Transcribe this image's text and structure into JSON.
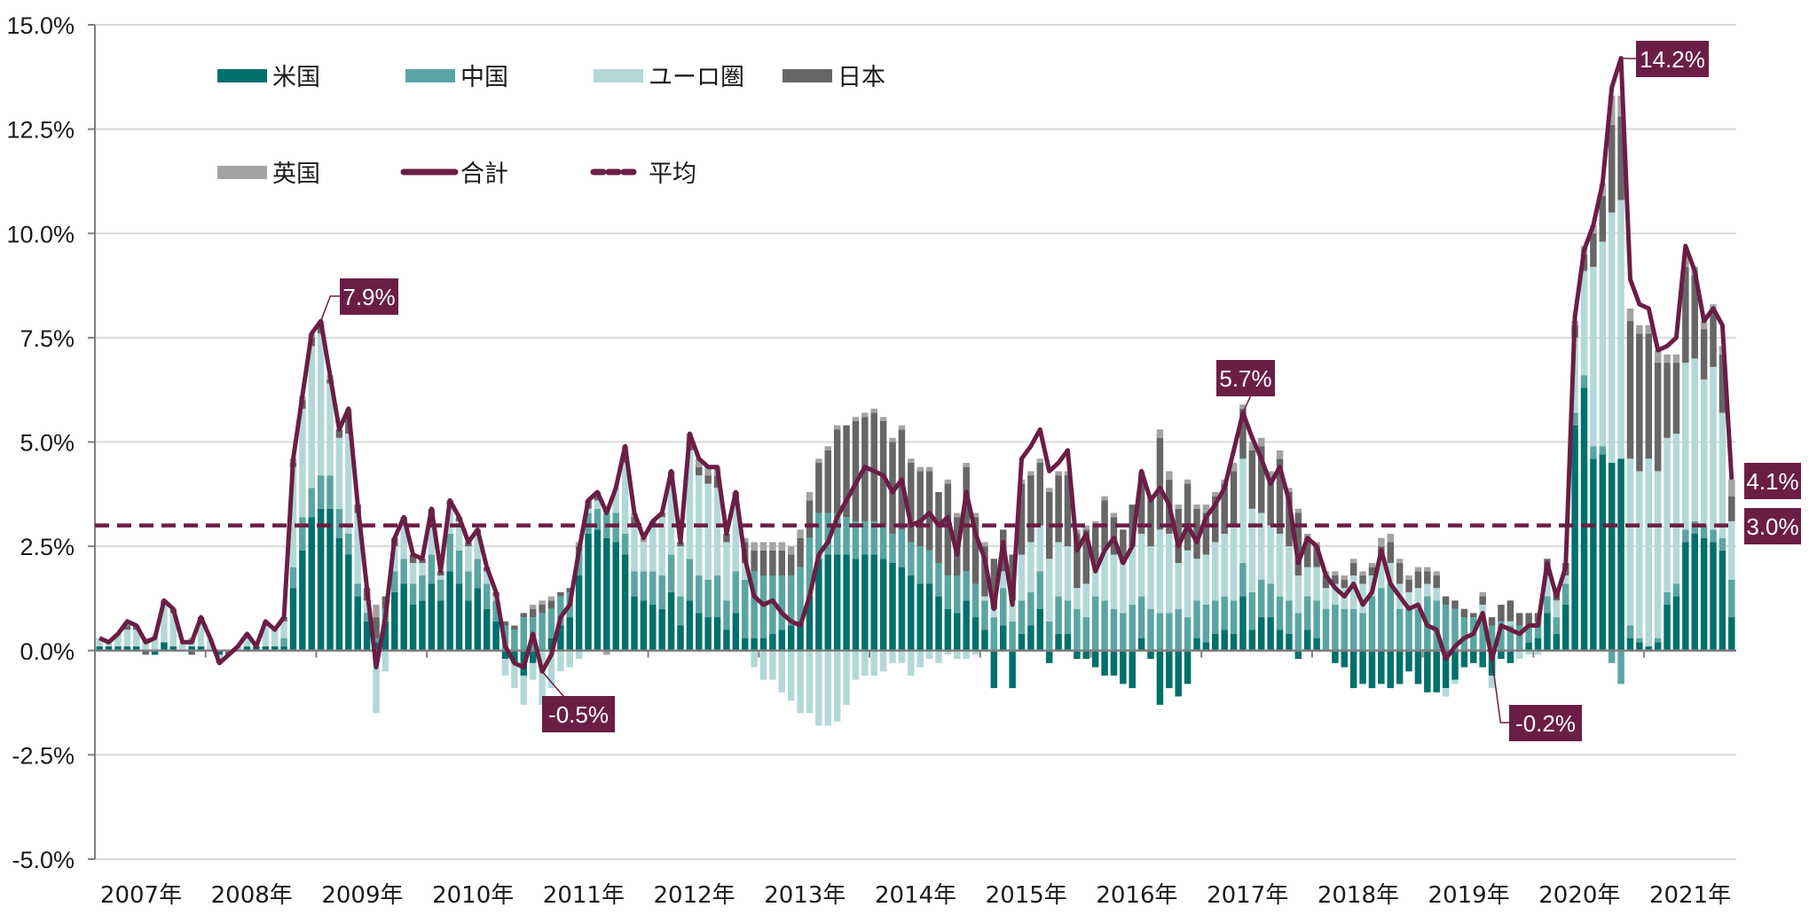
{
  "chart_data": {
    "type": "bar",
    "subtype": "stacked-bar-with-line",
    "title": "",
    "xlabel": "",
    "ylabel": "",
    "ylim": [
      -5.0,
      15.0
    ],
    "yticks": [
      "15.0%",
      "12.5%",
      "10.0%",
      "7.5%",
      "5.0%",
      "2.5%",
      "0.0%",
      "-2.5%",
      "-5.0%"
    ],
    "ytick_values": [
      15.0,
      12.5,
      10.0,
      7.5,
      5.0,
      2.5,
      0.0,
      -2.5,
      -5.0
    ],
    "xticks": [
      "2007年",
      "2008年",
      "2009年",
      "2010年",
      "2011年",
      "2012年",
      "2013年",
      "2014年",
      "2015年",
      "2016年",
      "2017年",
      "2018年",
      "2019年",
      "2020年",
      "2021年"
    ],
    "x_start": "2007-01",
    "x_frequency": "monthly",
    "n_points": 178,
    "grid": true,
    "legend_position": "top-left",
    "colors": {
      "us": "#00706b",
      "china": "#5aa5a3",
      "euro": "#b3d8d9",
      "japan": "#666666",
      "uk": "#a3a3a3",
      "total": "#6b1e45",
      "average": "#6b1e45",
      "annotation_bg": "#6b1e45"
    },
    "legend": [
      {
        "key": "us",
        "label": "米国",
        "kind": "bar"
      },
      {
        "key": "china",
        "label": "中国",
        "kind": "bar"
      },
      {
        "key": "euro",
        "label": "ユーロ圏",
        "kind": "bar"
      },
      {
        "key": "japan",
        "label": "日本",
        "kind": "bar"
      },
      {
        "key": "uk",
        "label": "英国",
        "kind": "bar"
      },
      {
        "key": "total",
        "label": "合計",
        "kind": "line"
      },
      {
        "key": "average",
        "label": "平均",
        "kind": "dashed-line"
      }
    ],
    "average_value": 3.0,
    "total": [
      0.3,
      0.2,
      0.4,
      0.7,
      0.6,
      0.2,
      0.3,
      1.2,
      1.0,
      0.2,
      0.2,
      0.8,
      0.3,
      -0.3,
      -0.1,
      0.1,
      0.4,
      0.1,
      0.7,
      0.5,
      0.8,
      4.6,
      6.1,
      7.6,
      7.9,
      6.6,
      5.3,
      5.8,
      3.5,
      1.5,
      -0.4,
      0.8,
      2.7,
      3.2,
      2.3,
      2.2,
      3.4,
      1.9,
      3.6,
      3.2,
      2.6,
      2.9,
      2.0,
      1.4,
      0.1,
      -0.3,
      -0.4,
      0.4,
      -0.5,
      -0.1,
      0.8,
      1.1,
      2.4,
      3.6,
      3.8,
      3.3,
      3.9,
      4.9,
      3.3,
      2.7,
      3.1,
      3.3,
      4.3,
      2.6,
      5.2,
      4.6,
      4.4,
      4.4,
      2.8,
      3.8,
      2.2,
      1.3,
      1.1,
      1.2,
      0.9,
      0.7,
      0.6,
      1.3,
      2.3,
      2.6,
      3.2,
      3.6,
      4.0,
      4.4,
      4.3,
      4.2,
      3.8,
      4.1,
      3.0,
      3.1,
      3.3,
      3.0,
      3.2,
      2.3,
      3.8,
      2.8,
      2.2,
      1.0,
      2.6,
      1.1,
      4.6,
      4.9,
      5.3,
      4.3,
      4.5,
      4.8,
      2.4,
      2.8,
      1.9,
      2.4,
      2.7,
      2.1,
      2.5,
      4.3,
      3.6,
      3.9,
      3.5,
      2.5,
      3.0,
      2.6,
      3.2,
      3.5,
      3.9,
      4.8,
      5.7,
      5.1,
      4.6,
      4.0,
      4.4,
      3.6,
      2.1,
      2.7,
      2.5,
      1.8,
      1.5,
      1.3,
      1.6,
      1.1,
      1.4,
      2.4,
      1.6,
      1.3,
      1.0,
      1.1,
      0.6,
      0.5,
      -0.2,
      0.1,
      0.3,
      0.4,
      0.9,
      -0.2,
      0.6,
      0.5,
      0.4,
      0.6,
      0.6,
      2.1,
      1.3,
      2.0,
      8.0,
      9.6,
      10.2,
      11.2,
      13.5,
      14.2,
      8.9,
      8.3,
      8.2,
      7.2,
      7.3,
      7.5,
      9.7,
      9.1,
      7.9,
      8.2,
      7.8,
      4.1
    ],
    "us": [
      0.1,
      0.1,
      0.1,
      0.1,
      0.1,
      0.0,
      -0.1,
      0.2,
      0.1,
      0.0,
      0.1,
      0.1,
      0.0,
      -0.1,
      0.0,
      0.0,
      0.1,
      0.1,
      0.1,
      0.1,
      0.1,
      1.5,
      2.4,
      3.2,
      3.4,
      3.4,
      2.7,
      2.3,
      1.3,
      0.7,
      0.2,
      0.7,
      1.4,
      1.6,
      1.1,
      1.2,
      1.6,
      1.2,
      1.9,
      1.6,
      1.2,
      1.5,
      1.0,
      0.7,
      -0.2,
      -0.3,
      -0.6,
      -0.3,
      0.0,
      0.3,
      0.6,
      0.8,
      1.8,
      2.8,
      2.9,
      2.7,
      2.6,
      2.3,
      1.3,
      1.2,
      1.1,
      1.0,
      1.4,
      0.6,
      1.2,
      0.9,
      0.8,
      0.8,
      0.5,
      0.9,
      0.3,
      0.3,
      0.3,
      0.4,
      0.5,
      0.6,
      0.7,
      1.3,
      2.2,
      2.3,
      2.3,
      2.3,
      2.2,
      2.3,
      2.3,
      2.2,
      2.1,
      2.0,
      1.8,
      1.6,
      1.6,
      1.3,
      1.0,
      0.9,
      1.2,
      0.8,
      0.5,
      -0.9,
      0.6,
      -0.9,
      0.4,
      0.6,
      1.0,
      -0.3,
      0.4,
      0.4,
      -0.2,
      -0.2,
      -0.4,
      -0.6,
      -0.6,
      -0.8,
      -0.9,
      0.3,
      -0.2,
      -1.3,
      -0.9,
      -1.1,
      -0.8,
      0.3,
      0.2,
      0.4,
      0.5,
      0.4,
      1.3,
      0.5,
      0.8,
      0.8,
      0.5,
      0.4,
      -0.2,
      0.5,
      0.3,
      0.0,
      -0.3,
      -0.4,
      -0.9,
      -0.8,
      -0.9,
      -0.8,
      -0.9,
      -0.8,
      -0.5,
      -0.8,
      -1.0,
      -1.0,
      -0.9,
      -0.7,
      -0.4,
      -0.3,
      -0.4,
      -0.6,
      -0.2,
      -0.3,
      0.0,
      0.2,
      0.3,
      0.9,
      0.4,
      1.1,
      5.4,
      6.3,
      4.6,
      4.7,
      4.5,
      4.6,
      0.3,
      0.2,
      0.1,
      0.2,
      1.1,
      1.3,
      2.6,
      2.8,
      2.7,
      2.6,
      2.4,
      0.8
    ],
    "china": [
      0.0,
      0.0,
      0.0,
      0.0,
      0.0,
      0.0,
      0.0,
      0.0,
      0.0,
      0.0,
      0.0,
      0.0,
      0.0,
      0.0,
      0.0,
      0.0,
      0.0,
      0.0,
      0.0,
      0.0,
      0.2,
      0.5,
      0.8,
      0.7,
      0.8,
      0.8,
      0.7,
      0.5,
      0.3,
      0.2,
      0.1,
      0.3,
      0.5,
      0.6,
      0.5,
      0.6,
      0.7,
      0.5,
      0.9,
      0.8,
      0.7,
      0.7,
      0.6,
      0.5,
      0.6,
      0.5,
      0.8,
      0.8,
      0.9,
      0.7,
      0.7,
      0.6,
      0.6,
      0.5,
      0.5,
      0.6,
      0.7,
      0.5,
      0.6,
      0.7,
      0.8,
      0.8,
      0.9,
      0.7,
      1.0,
      0.9,
      0.9,
      1.0,
      0.7,
      1.0,
      1.4,
      1.6,
      1.5,
      1.4,
      1.3,
      1.2,
      1.3,
      1.4,
      1.1,
      1.0,
      1.0,
      0.9,
      0.9,
      0.8,
      0.8,
      0.8,
      0.7,
      0.9,
      0.8,
      0.9,
      0.8,
      0.8,
      0.8,
      0.9,
      0.7,
      0.8,
      0.7,
      0.8,
      0.9,
      0.7,
      0.8,
      0.8,
      0.9,
      0.7,
      0.9,
      0.8,
      1.0,
      0.8,
      1.3,
      1.2,
      1.0,
      0.9,
      1.1,
      1.0,
      1.0,
      0.9,
      0.9,
      1.0,
      0.8,
      0.9,
      0.9,
      0.8,
      0.8,
      0.8,
      0.8,
      0.9,
      0.9,
      0.8,
      0.8,
      0.8,
      0.9,
      0.8,
      0.9,
      1.0,
      1.1,
      1.0,
      1.0,
      0.9,
      1.3,
      1.5,
      1.6,
      1.0,
      1.0,
      1.0,
      1.3,
      1.2,
      1.1,
      1.0,
      0.8,
      0.8,
      0.8,
      0.6,
      0.7,
      0.6,
      0.6,
      0.4,
      0.4,
      0.4,
      0.4,
      0.5,
      0.3,
      0.3,
      0.3,
      0.2,
      -0.3,
      -0.8,
      0.3,
      0.1,
      0.0,
      0.1,
      0.3,
      0.3,
      0.3,
      0.3,
      0.3,
      0.3,
      0.3,
      0.9
    ],
    "euro": [
      0.2,
      0.1,
      0.3,
      0.4,
      0.4,
      0.2,
      0.4,
      0.9,
      0.8,
      0.2,
      0.1,
      0.6,
      0.3,
      -0.1,
      0.0,
      0.1,
      0.3,
      0.0,
      0.6,
      0.4,
      0.4,
      2.4,
      2.6,
      3.4,
      3.4,
      2.2,
      1.7,
      2.4,
      1.7,
      0.3,
      -1.5,
      -0.5,
      0.6,
      0.8,
      0.5,
      0.3,
      0.9,
      0.1,
      0.7,
      0.7,
      0.6,
      0.6,
      0.3,
      0.1,
      -0.4,
      -0.6,
      -0.7,
      -0.4,
      -1.3,
      -0.9,
      -0.5,
      -0.4,
      -0.2,
      0.1,
      0.2,
      0.1,
      0.6,
      1.7,
      1.1,
      0.7,
      1.1,
      1.4,
      1.9,
      1.2,
      2.6,
      2.4,
      2.3,
      2.1,
      1.4,
      1.7,
      0.4,
      -0.4,
      -0.7,
      -0.7,
      -1.0,
      -1.2,
      -1.5,
      -1.5,
      -1.8,
      -1.8,
      -1.7,
      -1.3,
      -0.7,
      -0.6,
      -0.6,
      -0.5,
      -0.3,
      -0.3,
      -0.6,
      -0.4,
      -0.2,
      -0.3,
      -0.1,
      -0.2,
      -0.2,
      -0.1,
      0.1,
      0.2,
      0.4,
      0.5,
      1.1,
      1.2,
      1.1,
      1.5,
      1.3,
      1.3,
      0.5,
      0.8,
      0.8,
      1.2,
      1.3,
      1.2,
      1.4,
      1.5,
      1.5,
      2.0,
      1.9,
      1.1,
      1.6,
      1.0,
      1.2,
      1.4,
      1.5,
      1.8,
      2.5,
      2.0,
      1.6,
      1.4,
      1.5,
      1.3,
      0.9,
      0.7,
      0.8,
      0.5,
      0.5,
      0.5,
      0.8,
      0.7,
      0.5,
      0.7,
      0.5,
      0.6,
      0.4,
      0.5,
      0.3,
      0.3,
      -0.2,
      -0.1,
      0.0,
      0.0,
      0.3,
      -0.3,
      0.0,
      0.1,
      -0.2,
      -0.1,
      -0.1,
      0.5,
      0.4,
      0.2,
      1.8,
      2.5,
      4.3,
      4.9,
      6.0,
      6.2,
      4.0,
      4.0,
      4.5,
      4.0,
      3.7,
      3.6,
      4.0,
      3.9,
      3.5,
      3.9,
      3.0,
      1.4
    ],
    "japan": [
      0.0,
      0.0,
      0.0,
      0.1,
      0.1,
      -0.1,
      0.0,
      0.1,
      0.1,
      0.0,
      -0.1,
      0.1,
      0.0,
      -0.1,
      -0.1,
      0.0,
      0.0,
      0.0,
      0.0,
      0.0,
      0.1,
      0.1,
      0.2,
      0.2,
      0.2,
      0.1,
      0.2,
      0.5,
      0.2,
      0.3,
      0.5,
      0.3,
      0.2,
      0.2,
      0.2,
      0.1,
      0.2,
      0.1,
      0.1,
      0.1,
      0.1,
      0.1,
      0.1,
      0.1,
      0.1,
      0.1,
      0.1,
      0.2,
      0.2,
      0.2,
      0.1,
      0.1,
      0.1,
      0.2,
      0.2,
      0.0,
      0.0,
      0.2,
      0.2,
      0.0,
      0.1,
      0.1,
      0.1,
      0.1,
      0.2,
      0.2,
      0.2,
      0.3,
      0.2,
      0.2,
      0.5,
      0.5,
      0.6,
      0.6,
      0.6,
      0.5,
      0.7,
      0.9,
      1.2,
      1.5,
      2.0,
      2.2,
      2.4,
      2.5,
      2.6,
      2.5,
      2.2,
      2.4,
      1.9,
      1.8,
      1.9,
      1.7,
      2.2,
      1.4,
      2.5,
      1.6,
      1.2,
      1.2,
      1.0,
      1.1,
      1.7,
      1.6,
      1.5,
      1.6,
      1.6,
      1.7,
      1.3,
      1.3,
      0.9,
      1.2,
      0.9,
      0.8,
      1.0,
      1.4,
      1.1,
      2.2,
      1.3,
      1.3,
      1.6,
      1.2,
      1.0,
      1.1,
      1.2,
      1.3,
      1.2,
      1.4,
      1.6,
      1.1,
      1.8,
      1.3,
      1.5,
      0.7,
      0.5,
      0.3,
      0.2,
      0.2,
      0.3,
      0.2,
      0.2,
      0.3,
      0.5,
      0.5,
      0.3,
      0.4,
      0.3,
      0.3,
      0.2,
      0.2,
      0.2,
      0.1,
      0.2,
      0.2,
      0.4,
      0.5,
      0.3,
      0.3,
      0.2,
      0.4,
      0.3,
      0.3,
      0.3,
      0.4,
      0.8,
      1.1,
      2.1,
      2.0,
      3.3,
      3.3,
      3.0,
      2.6,
      1.8,
      1.7,
      2.3,
      2.0,
      1.2,
      1.3,
      1.4,
      0.6
    ],
    "uk": [
      0.0,
      0.0,
      0.0,
      0.1,
      0.0,
      0.1,
      0.0,
      0.0,
      0.0,
      0.0,
      0.1,
      0.0,
      0.0,
      0.0,
      0.0,
      0.0,
      0.0,
      0.0,
      0.0,
      0.0,
      0.0,
      0.1,
      0.1,
      0.1,
      0.1,
      0.1,
      0.0,
      0.1,
      0.0,
      0.0,
      0.3,
      0.0,
      0.0,
      0.0,
      0.0,
      0.0,
      0.0,
      0.0,
      0.0,
      0.0,
      0.0,
      0.0,
      0.0,
      0.0,
      0.0,
      0.0,
      0.0,
      0.1,
      0.1,
      0.1,
      0.0,
      0.0,
      0.1,
      0.0,
      0.0,
      -0.1,
      0.0,
      0.2,
      0.1,
      0.1,
      0.0,
      0.0,
      0.0,
      0.0,
      0.2,
      0.2,
      0.2,
      0.2,
      0.0,
      0.0,
      0.1,
      0.2,
      0.2,
      0.2,
      0.2,
      0.2,
      0.2,
      0.2,
      0.1,
      0.1,
      0.1,
      0.0,
      0.1,
      0.1,
      0.1,
      0.1,
      0.1,
      0.1,
      0.1,
      0.1,
      0.1,
      0.0,
      0.1,
      0.1,
      0.1,
      0.1,
      0.1,
      0.0,
      0.0,
      0.0,
      0.1,
      0.1,
      0.1,
      0.1,
      0.1,
      0.1,
      0.1,
      0.1,
      0.1,
      0.1,
      0.1,
      0.0,
      0.0,
      0.1,
      0.1,
      0.2,
      0.2,
      0.1,
      0.1,
      0.1,
      0.2,
      0.1,
      0.1,
      0.2,
      0.1,
      0.2,
      0.2,
      0.2,
      0.2,
      0.1,
      0.1,
      0.1,
      0.1,
      0.1,
      0.1,
      0.1,
      0.1,
      0.1,
      0.1,
      0.2,
      0.2,
      0.1,
      0.1,
      0.1,
      0.1,
      0.1,
      0.0,
      0.0,
      0.0,
      0.0,
      0.1,
      0.0,
      0.0,
      0.0,
      0.0,
      0.0,
      0.0,
      0.0,
      0.0,
      0.0,
      0.1,
      0.2,
      0.2,
      0.3,
      0.7,
      0.5,
      0.3,
      0.2,
      0.2,
      0.3,
      0.2,
      0.2,
      0.3,
      0.2,
      0.2,
      0.2,
      0.2,
      0.4
    ],
    "annotations": [
      {
        "label": "7.9%",
        "index": 24,
        "value": 7.9
      },
      {
        "label": "-0.5%",
        "index": 48,
        "value": -0.5
      },
      {
        "label": "5.7%",
        "index": 124,
        "value": 5.7
      },
      {
        "label": "-0.2%",
        "index": 151,
        "value": -0.2
      },
      {
        "label": "14.2%",
        "index": 165,
        "value": 14.2
      },
      {
        "label": "4.1%",
        "index": 177,
        "value": 4.1
      },
      {
        "label": "3.0%",
        "index": 177,
        "value": 3.0
      }
    ]
  }
}
